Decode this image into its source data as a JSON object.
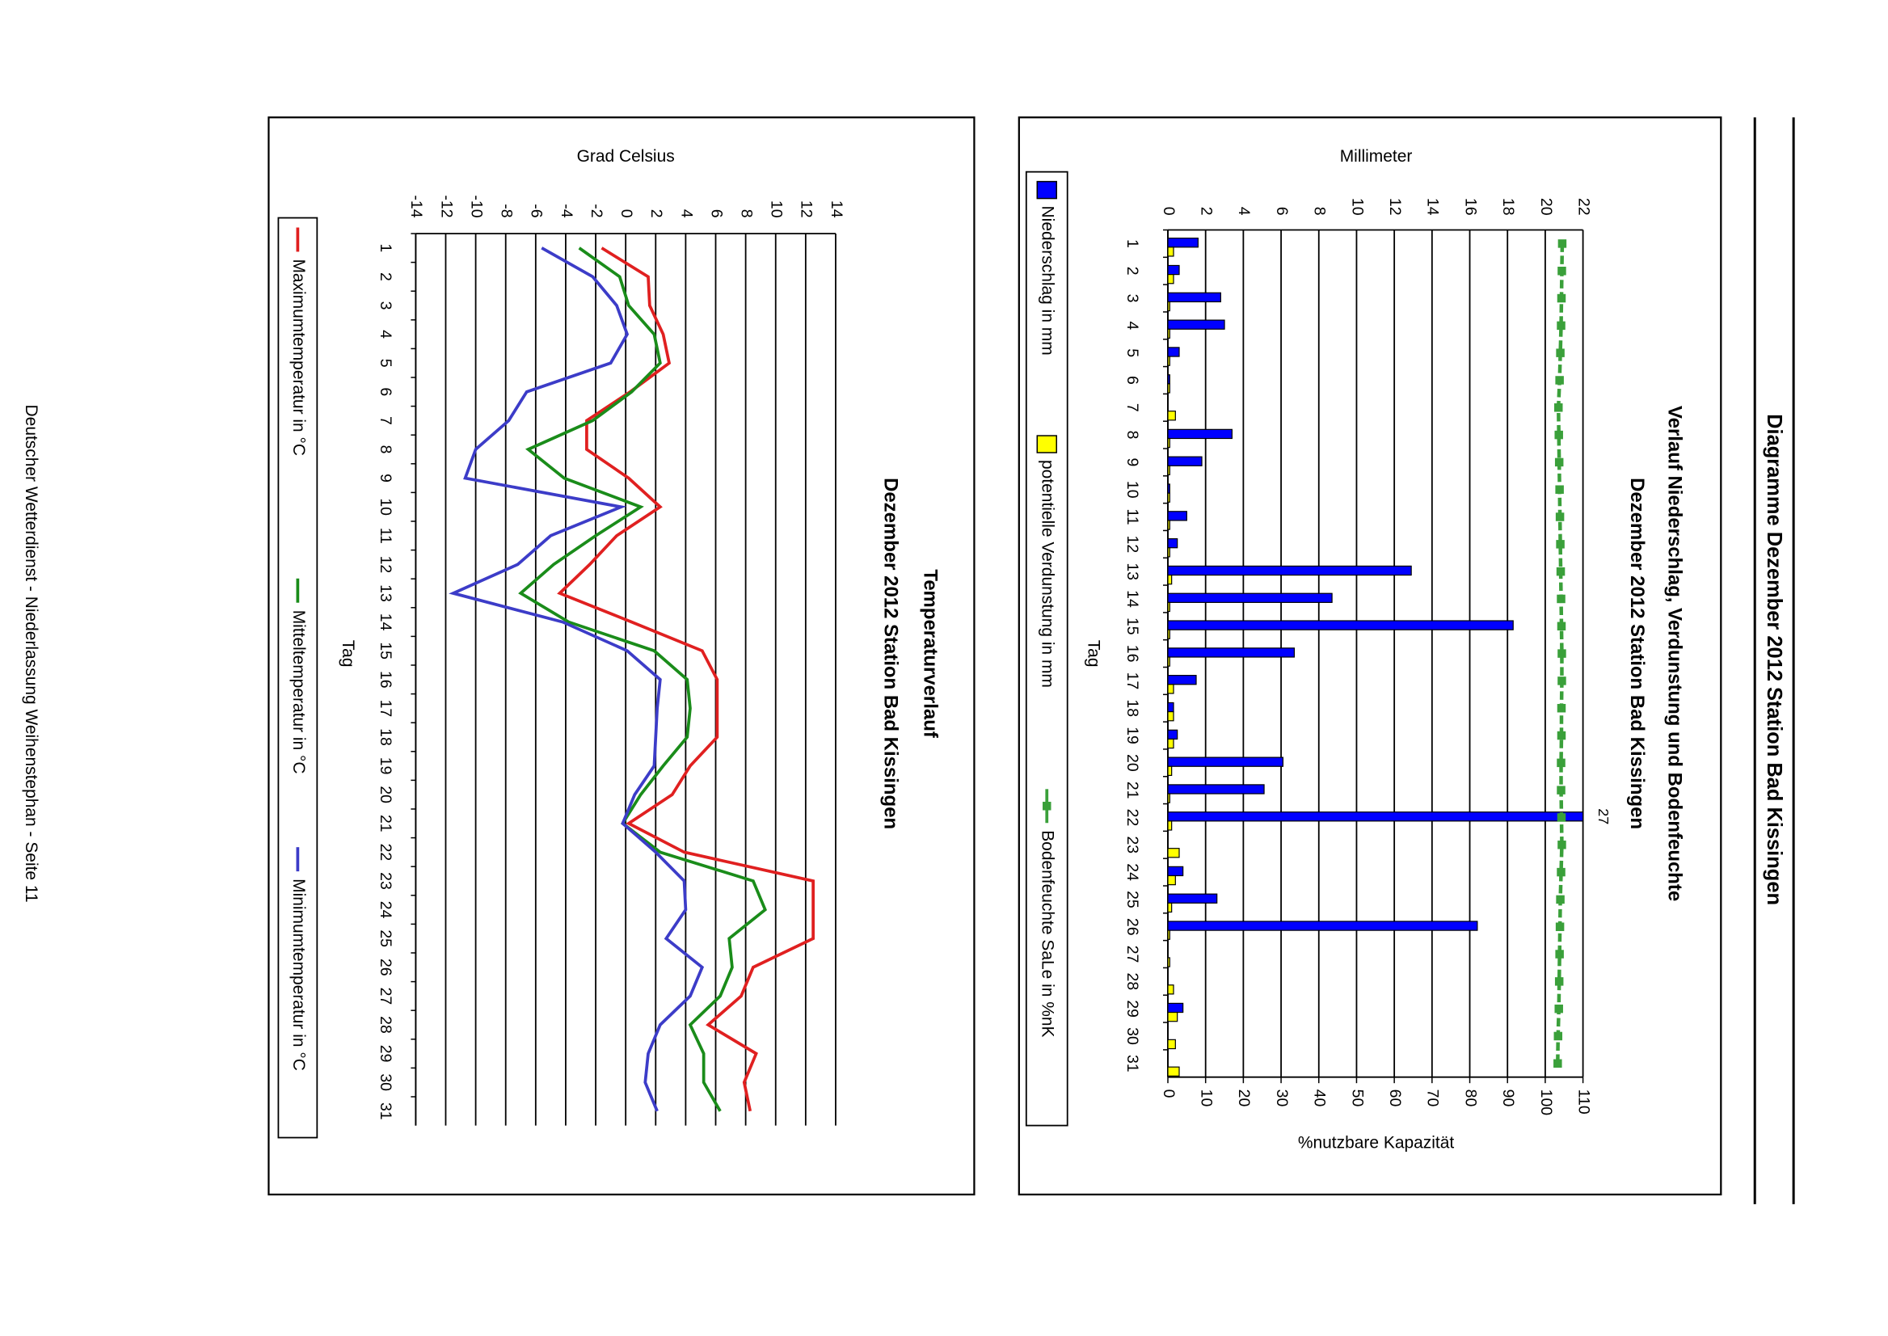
{
  "header": {
    "title": "Diagramme Dezember 2012 Station Bad Kissingen"
  },
  "chart_data": [
    {
      "type": "bar",
      "title": "Verlauf Niederschlag, Verdunstung und Bodenfeuchte",
      "subtitle": "Dezember 2012 Station Bad Kissingen",
      "xlabel": "Tag",
      "ylabel": "Millimeter",
      "y2label": "%nutzbare Kapazität",
      "categories": [
        "1",
        "2",
        "3",
        "4",
        "5",
        "6",
        "7",
        "8",
        "9",
        "10",
        "11",
        "12",
        "13",
        "14",
        "15",
        "16",
        "17",
        "18",
        "19",
        "20",
        "21",
        "22",
        "23",
        "24",
        "25",
        "26",
        "27",
        "28",
        "29",
        "30",
        "31"
      ],
      "series": [
        {
          "name": "Niederschlag in mm",
          "color": "#0000ff",
          "values": [
            1.6,
            0.6,
            2.8,
            3.0,
            0.6,
            0.1,
            0,
            3.4,
            1.8,
            0.1,
            1.0,
            0.5,
            12.9,
            8.7,
            18.3,
            6.7,
            1.5,
            0.3,
            0.5,
            6.1,
            5.1,
            27,
            0,
            0.8,
            2.6,
            16.4,
            0,
            0,
            0.8,
            0,
            0
          ]
        },
        {
          "name": "potentielle Verdunstung in mm",
          "color": "#ffff00",
          "values": [
            0.3,
            0.3,
            0.1,
            0.1,
            0.1,
            0.1,
            0.4,
            0.1,
            0.1,
            0.1,
            0.1,
            0.1,
            0.2,
            0.1,
            0.1,
            0.1,
            0.3,
            0.3,
            0.3,
            0.2,
            0.1,
            0.2,
            0.6,
            0.4,
            0.2,
            0.1,
            0.1,
            0.3,
            0.5,
            0.4,
            0.6
          ]
        },
        {
          "name": "Bodenfeuchte SaLe in %nK",
          "color": "#3aa03a",
          "type": "line",
          "axis": "y2",
          "values": [
            104.5,
            104.4,
            104.3,
            104.2,
            104.0,
            103.8,
            103.5,
            103.6,
            103.7,
            103.8,
            103.9,
            104.0,
            104.1,
            104.2,
            104.3,
            104.4,
            104.4,
            104.3,
            104.3,
            104.2,
            104.2,
            104.3,
            104.4,
            104.2,
            104.0,
            103.9,
            103.8,
            103.7,
            103.6,
            103.4,
            103.3
          ]
        }
      ],
      "ylim": [
        0,
        22
      ],
      "yticks": [
        0,
        2,
        4,
        6,
        8,
        10,
        12,
        14,
        16,
        18,
        20,
        22
      ],
      "y2lim": [
        0,
        110
      ],
      "y2ticks": [
        0,
        10,
        20,
        30,
        40,
        50,
        60,
        70,
        80,
        90,
        100,
        110
      ],
      "grid": true,
      "legend": "bottom"
    },
    {
      "type": "line",
      "title": "Temperaturverlauf",
      "subtitle": "Dezember 2012 Station Bad Kissingen",
      "xlabel": "Tag",
      "ylabel": "Grad Celsius",
      "categories": [
        "1",
        "2",
        "3",
        "4",
        "5",
        "6",
        "7",
        "8",
        "9",
        "10",
        "11",
        "12",
        "13",
        "14",
        "15",
        "16",
        "17",
        "18",
        "19",
        "20",
        "21",
        "22",
        "23",
        "24",
        "25",
        "26",
        "27",
        "28",
        "29",
        "30",
        "31"
      ],
      "series": [
        {
          "name": "Maximumtemperatur in °C",
          "color": "#e02020",
          "values": [
            -1.6,
            1.5,
            1.6,
            2.5,
            2.9,
            0.3,
            -2.6,
            -2.6,
            0.2,
            2.3,
            -0.6,
            -2.4,
            -4.4,
            0.4,
            5.1,
            6.1,
            6.1,
            6.1,
            4.3,
            3.1,
            0.2,
            3.9,
            12.5,
            12.5,
            12.5,
            8.5,
            7.7,
            5.5,
            8.7,
            7.9,
            8.3
          ]
        },
        {
          "name": "Mitteltemperatur in °C",
          "color": "#1a8c1a",
          "values": [
            -3.1,
            -0.4,
            0.2,
            1.9,
            2.3,
            0.4,
            -2.2,
            -6.5,
            -4.1,
            1.0,
            -2.0,
            -4.8,
            -7.0,
            -3.8,
            1.9,
            4.1,
            4.3,
            4.1,
            2.5,
            1.0,
            -0.2,
            2.3,
            8.5,
            9.3,
            6.9,
            7.1,
            6.3,
            4.3,
            5.2,
            5.2,
            6.3
          ]
        },
        {
          "name": "Minimumtemperatur in °C",
          "color": "#3c3cc8",
          "values": [
            -5.6,
            -2.2,
            -0.6,
            0.1,
            -1.0,
            -6.6,
            -7.8,
            -10.0,
            -10.7,
            -0.3,
            -5.0,
            -7.2,
            -11.5,
            -4.2,
            0.1,
            2.3,
            2.1,
            2.0,
            1.9,
            0.6,
            -0.2,
            2.0,
            3.9,
            4.0,
            2.7,
            5.1,
            4.3,
            2.3,
            1.5,
            1.3,
            2.1
          ]
        }
      ],
      "ylim": [
        -14,
        14
      ],
      "yticks": [
        -14,
        -12,
        -10,
        -8,
        -6,
        -4,
        -2,
        0,
        2,
        4,
        6,
        8,
        10,
        12,
        14
      ],
      "grid": true,
      "legend": "bottom"
    }
  ],
  "footer": "Deutscher Wetterdienst - Niederlassung Weihenstephan - Seite 11"
}
